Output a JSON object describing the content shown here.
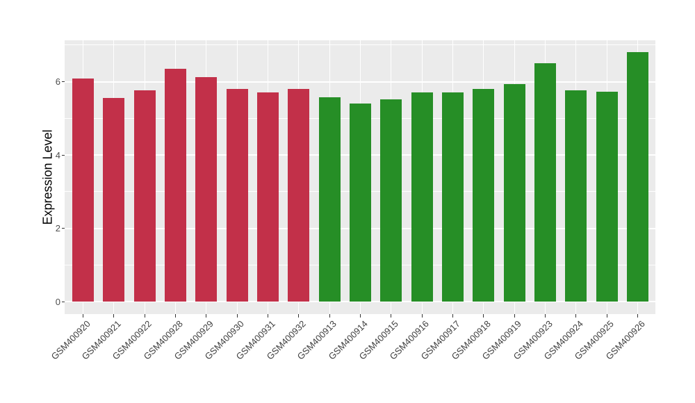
{
  "figure": {
    "background_color": "#FFFFFF",
    "panel_background_color": "#EBEBEB",
    "gridline_color": "#FFFFFF",
    "tick_mark_color": "#333333",
    "axis_text_color": "#4D4D4D",
    "axis_title_color": "#000000"
  },
  "chart_data": {
    "type": "bar",
    "title": "",
    "xlabel": "",
    "ylabel": "Expression Level",
    "categories": [
      "GSM400920",
      "GSM400921",
      "GSM400922",
      "GSM400928",
      "GSM400929",
      "GSM400930",
      "GSM400931",
      "GSM400932",
      "GSM400913",
      "GSM400914",
      "GSM400915",
      "GSM400916",
      "GSM400917",
      "GSM400918",
      "GSM400919",
      "GSM400923",
      "GSM400924",
      "GSM400925",
      "GSM400926"
    ],
    "values": [
      6.08,
      5.55,
      5.76,
      6.35,
      6.12,
      5.8,
      5.71,
      5.81,
      5.57,
      5.4,
      5.52,
      5.71,
      5.7,
      5.8,
      5.93,
      6.5,
      5.76,
      5.73,
      6.81
    ],
    "groups": [
      {
        "name": "group-red",
        "color": "#C23049",
        "count": 8
      },
      {
        "name": "group-green",
        "color": "#268E26",
        "count": 11
      }
    ],
    "bar_colors": [
      "#C23049",
      "#C23049",
      "#C23049",
      "#C23049",
      "#C23049",
      "#C23049",
      "#C23049",
      "#C23049",
      "#268E26",
      "#268E26",
      "#268E26",
      "#268E26",
      "#268E26",
      "#268E26",
      "#268E26",
      "#268E26",
      "#268E26",
      "#268E26",
      "#268E26"
    ],
    "y_ticks": [
      0,
      2,
      4,
      6
    ],
    "y_minor_ticks": [
      1,
      3,
      5,
      7
    ],
    "ylim": [
      0,
      7.1
    ],
    "x_label_angle_deg": 45,
    "grid": true,
    "legend_position": "none"
  }
}
